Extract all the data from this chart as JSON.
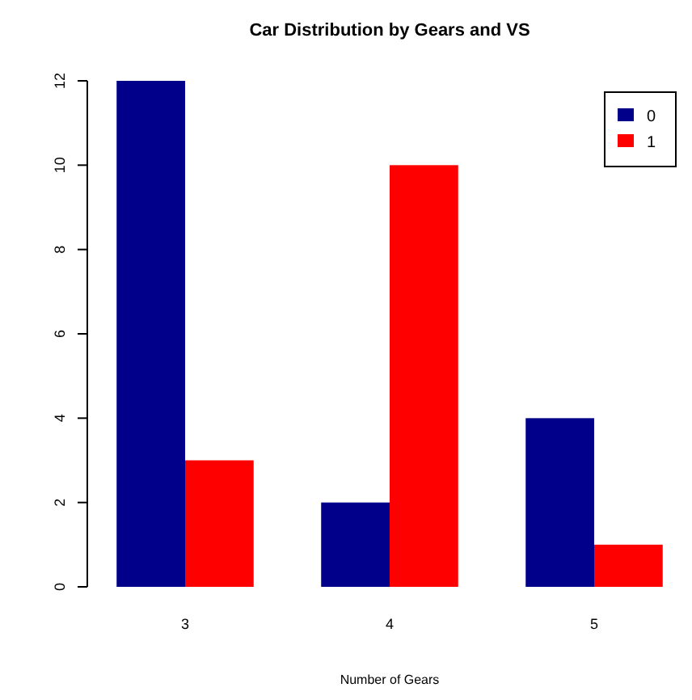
{
  "chart_data": {
    "type": "bar",
    "title": "Car Distribution by Gears and VS",
    "xlabel": "Number of Gears",
    "categories": [
      "3",
      "4",
      "5"
    ],
    "series": [
      {
        "name": "0",
        "color": "#00008b",
        "values": [
          12,
          2,
          4
        ]
      },
      {
        "name": "1",
        "color": "#ff0000",
        "values": [
          3,
          10,
          1
        ]
      }
    ],
    "ylim": [
      0,
      12
    ],
    "yticks": [
      0,
      2,
      4,
      6,
      8,
      10,
      12
    ],
    "legend": "top right",
    "grid": false
  }
}
